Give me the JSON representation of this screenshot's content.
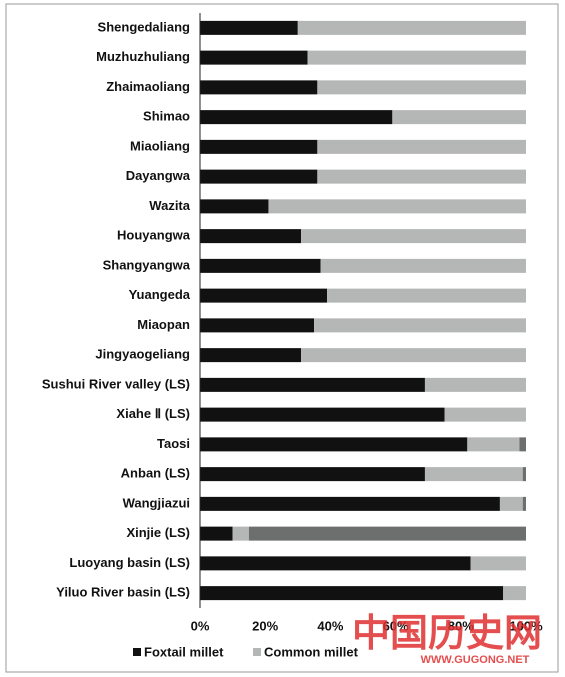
{
  "chart_data": {
    "type": "stacked-bar-horizontal",
    "categories": [
      "Shengedaliang",
      "Muzhuzhuliang",
      "Zhaimaoliang",
      "Shimao",
      "Miaoliang",
      "Dayangwa",
      "Wazita",
      "Houyangwa",
      "Shangyangwa",
      "Yuangeda",
      "Miaopan",
      "Jingyaogeliang",
      "Sushui River valley (LS)",
      "Xiahe Ⅱ (LS)",
      "Taosi",
      "Anban (LS)",
      "Wangjiazui",
      "Xinjie (LS)",
      "Luoyang basin (LS)",
      "Yiluo River basin (LS)"
    ],
    "series": [
      {
        "name": "Foxtail millet",
        "color": "#111111",
        "values": [
          30,
          33,
          36,
          59,
          36,
          36,
          21,
          31,
          37,
          39,
          35,
          31,
          69,
          75,
          82,
          69,
          92,
          10,
          83,
          93
        ]
      },
      {
        "name": "Common millet",
        "color": "#b4b7b6",
        "values": [
          70,
          67,
          64,
          41,
          64,
          64,
          79,
          69,
          63,
          61,
          65,
          69,
          31,
          25,
          16,
          30,
          7,
          5,
          17,
          7
        ]
      },
      {
        "color": "#6d6f6e",
        "values": [
          0,
          0,
          0,
          0,
          0,
          0,
          0,
          0,
          0,
          0,
          0,
          0,
          0,
          0,
          2,
          1,
          1,
          85,
          0,
          0
        ]
      }
    ],
    "xlim": [
      0,
      100
    ],
    "xticks": [
      {
        "value": 0,
        "label": "0%"
      },
      {
        "value": 20,
        "label": "20%"
      },
      {
        "value": 40,
        "label": "40%"
      },
      {
        "value": 60,
        "label": "60%"
      },
      {
        "value": 80,
        "label": "80%"
      },
      {
        "value": 100,
        "label": "100%"
      }
    ],
    "watermark": "中国历史网",
    "watermark_url": "WWW.GUGONG.NET"
  }
}
